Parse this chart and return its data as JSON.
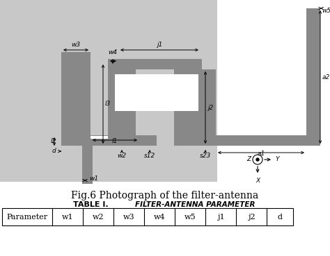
{
  "fig_caption": "Fig.6 Photograph of the filter-antenna",
  "table_title_left": "TABLE I.",
  "table_title_right": "FILTER-ANTENNA PARAMETER",
  "table_headers": [
    "Parameter",
    "w1",
    "w2",
    "w3",
    "w4",
    "w5",
    "j1",
    "j2",
    "d"
  ],
  "bg_color_left": "#c8c8c8",
  "dark_gray": "#888888",
  "white": "#ffffff",
  "black": "#000000",
  "light_gray": "#e8e8e8"
}
